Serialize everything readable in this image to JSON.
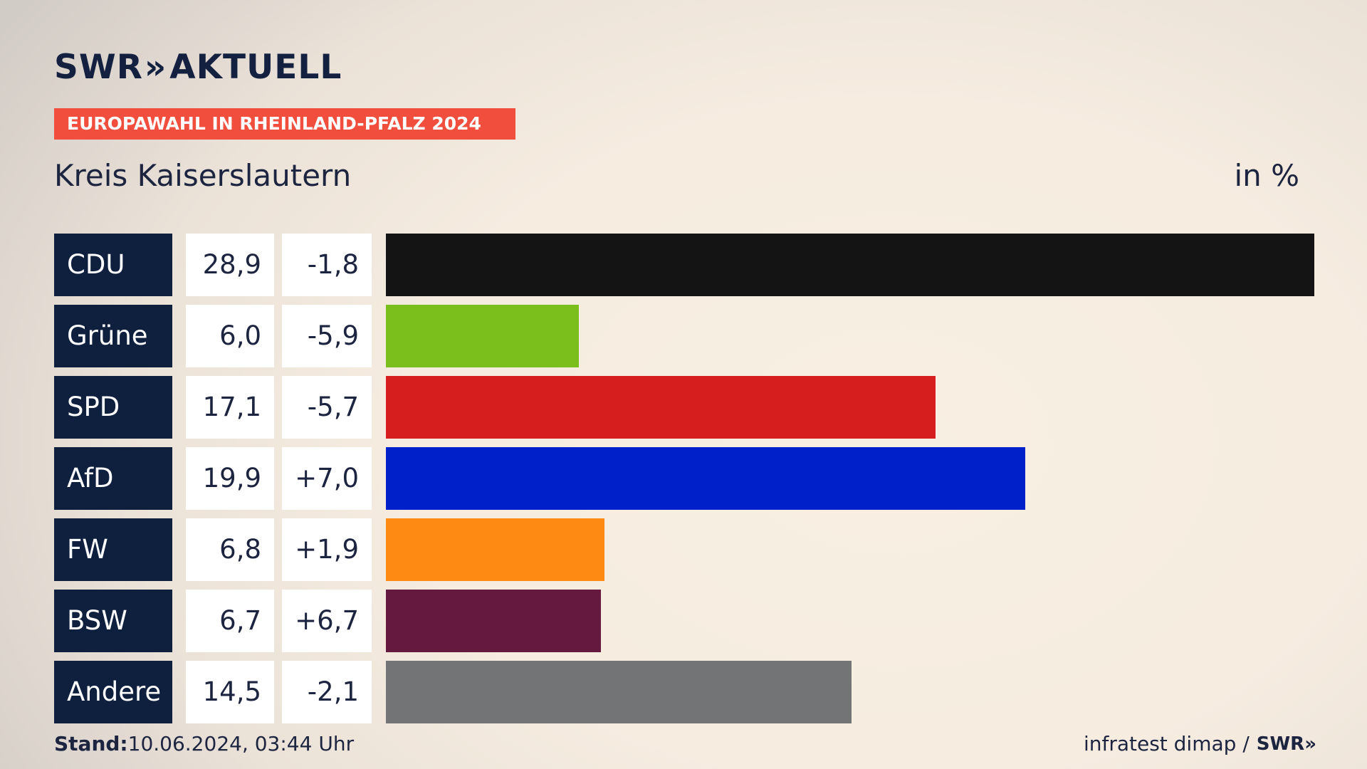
{
  "brand": {
    "logo_text": "SWR",
    "logo_chevrons": "»",
    "logo_suffix": "AKTUELL"
  },
  "banner": "EUROPAWAHL IN RHEINLAND-PFALZ 2024",
  "colors": {
    "banner": "#f24e3d",
    "label_bg": "#0f1f3e"
  },
  "chart_data": {
    "type": "bar",
    "orientation": "horizontal",
    "title": "Kreis Kaiserslautern",
    "unit": "in %",
    "max_value": 28.9,
    "rows": [
      {
        "party": "CDU",
        "value": 28.9,
        "value_label": "28,9",
        "diff_label": "-1,8",
        "color": "#141414"
      },
      {
        "party": "Grüne",
        "value": 6.0,
        "value_label": "6,0",
        "diff_label": "-5,9",
        "color": "#7bbf1c"
      },
      {
        "party": "SPD",
        "value": 17.1,
        "value_label": "17,1",
        "diff_label": "-5,7",
        "color": "#d61e1e"
      },
      {
        "party": "AfD",
        "value": 19.9,
        "value_label": "19,9",
        "diff_label": "+7,0",
        "color": "#0021c9"
      },
      {
        "party": "FW",
        "value": 6.8,
        "value_label": "6,8",
        "diff_label": "+1,9",
        "color": "#fe8a14"
      },
      {
        "party": "BSW",
        "value": 6.7,
        "value_label": "6,7",
        "diff_label": "+6,7",
        "color": "#66193f"
      },
      {
        "party": "Andere",
        "value": 14.5,
        "value_label": "14,5",
        "diff_label": "-2,1",
        "color": "#737475"
      }
    ]
  },
  "footer": {
    "stand_label": "Stand:",
    "stand_value": "10.06.2024, 03:44 Uhr",
    "source": "infratest dimap /",
    "source_logo": "SWR",
    "source_chevrons": "»"
  }
}
